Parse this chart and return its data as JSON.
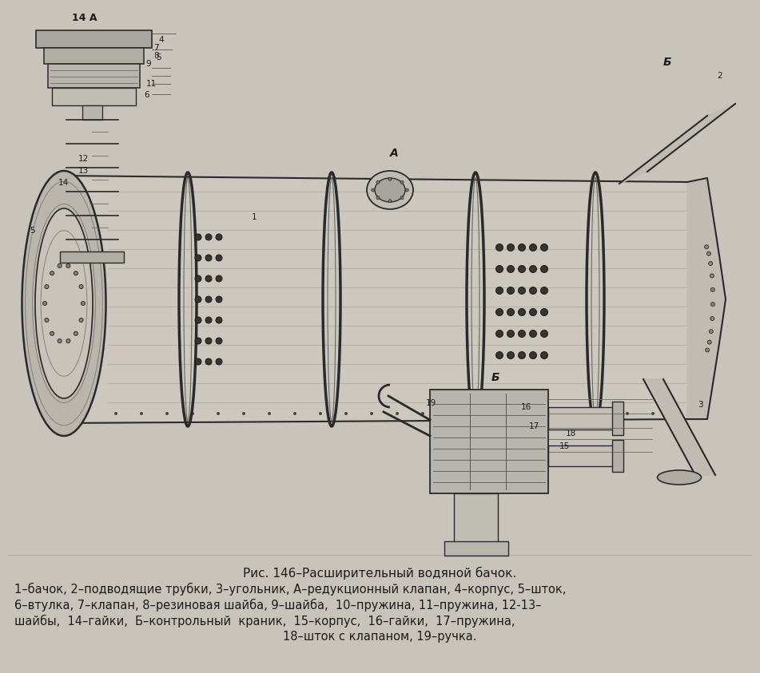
{
  "fig_width": 9.51,
  "fig_height": 8.43,
  "dpi": 100,
  "bg_color": "#c8c4bc",
  "caption_title": "Рис. 146–Расширительный водяной бачок.",
  "caption_line1": "1–бачок, 2–подводящие трубки, 3–угольник, А–редукционный клапан, 4–корпус, 5–шток,",
  "caption_line2": "6–втулка, 7–клапан, 8–резиновая шайба, 9–шайба,  10–пружина, 11–пружина, 12-13–",
  "caption_line3": "шайбы,  14–гайки,  Б–контрольный  краник,  15–корпус,  16–гайки,  17–пружина,",
  "caption_line4": "18–шток с клапаном, 19–ручка.",
  "title_fontsize": 11,
  "body_fontsize": 10.5,
  "caption_color": "#1a1a1a",
  "label_fontsize": 8,
  "lc": "#2a2a2a"
}
